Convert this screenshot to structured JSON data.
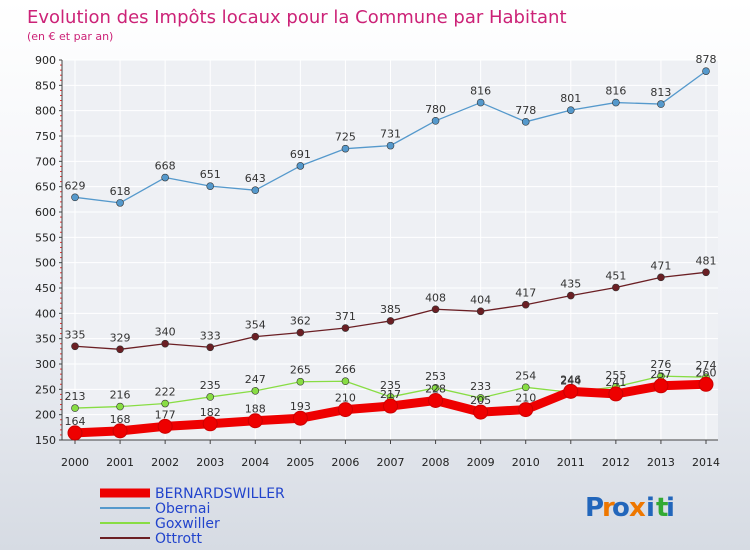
{
  "chart_data": {
    "type": "line",
    "title": "Evolution des Impôts locaux pour la Commune par Habitant",
    "subtitle": "(en € et par an)",
    "x": [
      "2000",
      "2001",
      "2002",
      "2003",
      "2004",
      "2005",
      "2006",
      "2007",
      "2008",
      "2009",
      "2010",
      "2011",
      "2012",
      "2013",
      "2014"
    ],
    "ylim": [
      150,
      900
    ],
    "yticks": [
      150,
      200,
      250,
      300,
      350,
      400,
      450,
      500,
      550,
      600,
      650,
      700,
      750,
      800,
      850,
      900
    ],
    "grid": true,
    "legend_position": "bottom-left",
    "series": [
      {
        "name": "BERNARDSWILLER",
        "color": "#ee0000",
        "values": [
          164,
          168,
          177,
          182,
          188,
          193,
          210,
          217,
          228,
          205,
          210,
          246,
          241,
          257,
          260
        ]
      },
      {
        "name": "Obernai",
        "color": "#5599cc",
        "values": [
          629,
          618,
          668,
          651,
          643,
          691,
          725,
          731,
          780,
          816,
          778,
          801,
          816,
          813,
          878
        ]
      },
      {
        "name": "Goxwiller",
        "color": "#88dd44",
        "values": [
          213,
          216,
          222,
          235,
          247,
          265,
          266,
          235,
          253,
          233,
          254,
          244,
          255,
          276,
          274
        ]
      },
      {
        "name": "Ottrott",
        "color": "#6b1f24",
        "values": [
          335,
          329,
          340,
          333,
          354,
          362,
          371,
          385,
          408,
          404,
          417,
          435,
          451,
          471,
          481
        ]
      }
    ],
    "colors": {
      "title": "#cc2277",
      "subtitle": "#cc2277",
      "grid": "#ffffff",
      "axis": "#444444",
      "legend_text": "#2244cc"
    }
  },
  "logo": {
    "text": "Proxiti",
    "letters": [
      "P",
      "r",
      "o",
      "x",
      "i",
      "t",
      "i"
    ],
    "colors": [
      "#2266bb",
      "#ee7700",
      "#2266bb",
      "#ee7700",
      "#2266bb",
      "#33aa33",
      "#2266bb"
    ]
  }
}
